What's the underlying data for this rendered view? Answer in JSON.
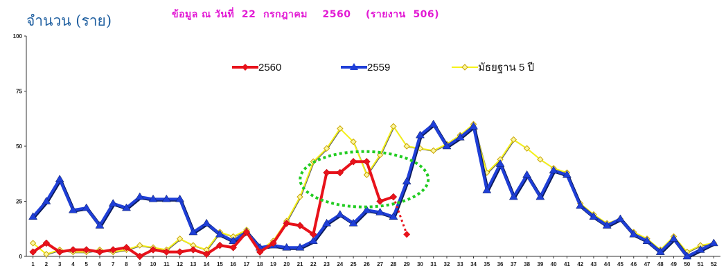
{
  "header": {
    "ylabel": "จำนวน  (ราย)",
    "subtitle": "ข้อมูล ณ วันที่  22  กรกฎาคม    2560    (รายงาน  506)"
  },
  "colors": {
    "s2560": "#e8121b",
    "s2559": "#1f3fd8",
    "median": "#f6f21a"
  },
  "chart_data": {
    "type": "line",
    "ylim": [
      0,
      100
    ],
    "yticks": [
      "0",
      "25",
      "50",
      "75",
      "100"
    ],
    "x": [
      "1",
      "2",
      "3",
      "4",
      "5",
      "6",
      "7",
      "8",
      "9",
      "10",
      "11",
      "12",
      "13",
      "14",
      "15",
      "16",
      "17",
      "18",
      "19",
      "20",
      "21",
      "22",
      "23",
      "24",
      "25",
      "26",
      "27",
      "28",
      "29",
      "30",
      "31",
      "32",
      "33",
      "34",
      "35",
      "36",
      "37",
      "38",
      "39",
      "40",
      "41",
      "42",
      "43",
      "44",
      "45",
      "46",
      "47",
      "48",
      "49",
      "50",
      "51",
      "52"
    ],
    "series": [
      {
        "name": "2560",
        "color": "#e8121b",
        "values": [
          2,
          6,
          2,
          3,
          3,
          2,
          3,
          4,
          0,
          3,
          2,
          2,
          3,
          1,
          5,
          4,
          11,
          2,
          6,
          15,
          14,
          10,
          38,
          38,
          43,
          43,
          25,
          27,
          null,
          null,
          null,
          null,
          null,
          null,
          null,
          null,
          null,
          null,
          null,
          null,
          null,
          null,
          null,
          null,
          null,
          null,
          null,
          null,
          null,
          null,
          null,
          null
        ],
        "projected": {
          "x_from": 28,
          "y_from": 27,
          "x_to": 29,
          "y_to": 10
        }
      },
      {
        "name": "2559",
        "color": "#1f3fd8",
        "values": [
          18,
          25,
          35,
          21,
          22,
          14,
          24,
          22,
          27,
          26,
          26,
          26,
          11,
          15,
          10,
          7,
          11,
          4,
          5,
          4,
          4,
          7,
          15,
          19,
          15,
          21,
          20,
          18,
          34,
          55,
          60,
          50,
          54,
          59,
          30,
          42,
          27,
          37,
          27,
          39,
          37,
          23,
          18,
          14,
          17,
          10,
          7,
          2,
          8,
          0,
          3,
          6
        ]
      },
      {
        "name": "มัธยฐาน 5 ปี",
        "color": "#f6f21a",
        "values": [
          6,
          1,
          3,
          2,
          2,
          3,
          2,
          3,
          5,
          4,
          3,
          8,
          5,
          3,
          11,
          9,
          12,
          3,
          7,
          16,
          27,
          43,
          49,
          58,
          52,
          37,
          46,
          59,
          50,
          49,
          48,
          51,
          55,
          60,
          38,
          44,
          53,
          49,
          44,
          40,
          38,
          24,
          19,
          15,
          17,
          11,
          8,
          3,
          9,
          2,
          5,
          6
        ]
      }
    ]
  }
}
